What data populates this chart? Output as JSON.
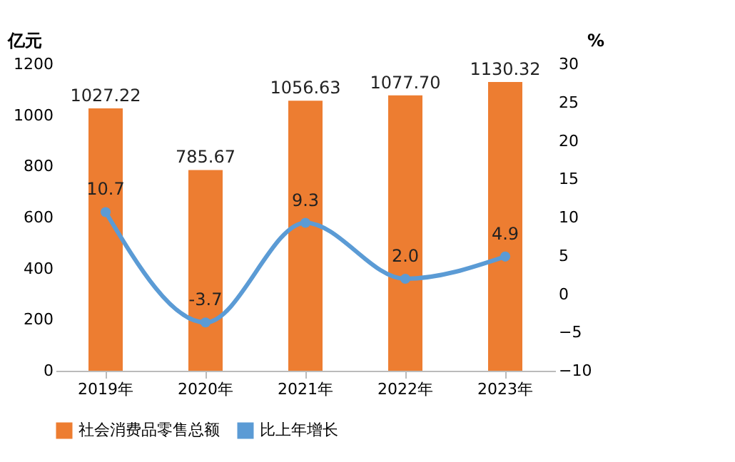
{
  "chart_data": {
    "type": "bar",
    "categories": [
      "2019年",
      "2020年",
      "2021年",
      "2022年",
      "2023年"
    ],
    "ylabel": "亿元",
    "y2label": "%",
    "ylim": [
      0,
      1200
    ],
    "yticks": [
      0,
      200,
      400,
      600,
      800,
      1000,
      1200
    ],
    "y2lim": [
      -10,
      30
    ],
    "y2ticks": [
      -10,
      -5,
      0,
      5,
      10,
      15,
      20,
      25,
      30
    ],
    "series": [
      {
        "name": "社会消费品零售总额",
        "color": "#ed7d31",
        "values": [
          1027.22,
          785.67,
          1056.63,
          1077.7,
          1130.32
        ],
        "value_labels": [
          "1027.22",
          "785.67",
          "1056.63",
          "1077.70",
          "1130.32"
        ]
      },
      {
        "name": "比上年增长",
        "type": "line",
        "axis": "y2",
        "color": "#5b9bd5",
        "marker": "circle",
        "values": [
          10.7,
          -3.7,
          9.3,
          2.0,
          4.9
        ],
        "value_labels": [
          "10.7",
          "-3.7",
          "9.3",
          "2.0",
          "4.9"
        ]
      }
    ],
    "legend": "bottom"
  }
}
